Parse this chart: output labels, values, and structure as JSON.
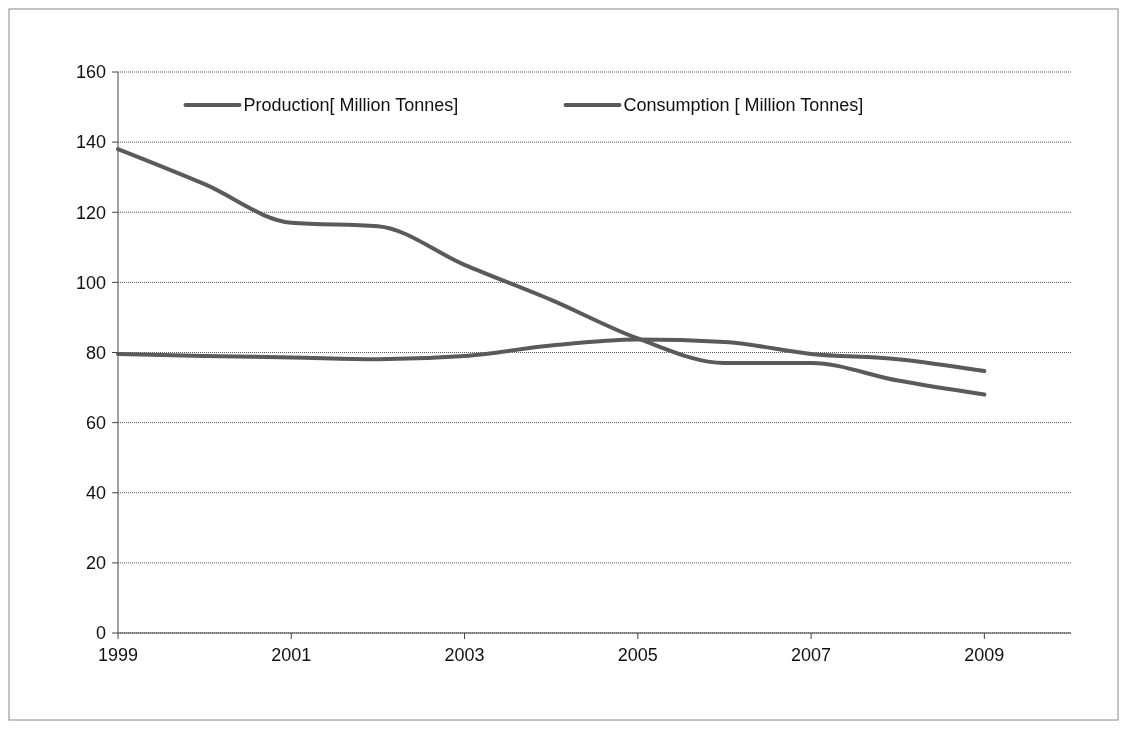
{
  "chart_data": {
    "type": "line",
    "x": [
      1999,
      2000,
      2001,
      2002,
      2003,
      2004,
      2005,
      2006,
      2007,
      2008,
      2009
    ],
    "series": [
      {
        "name": "Production[ Million Tonnes]",
        "color": "#5a5a5a",
        "values": [
          138,
          128,
          117,
          116,
          105,
          95,
          84,
          77,
          77,
          72,
          68
        ]
      },
      {
        "name": "Consumption [ Million Tonnes]",
        "color": "#5a5a5a",
        "values": [
          79.6,
          79,
          78.6,
          78.1,
          79,
          82,
          83.7,
          83,
          79.6,
          78.1,
          74.7
        ]
      }
    ],
    "xlim": [
      1999,
      2010
    ],
    "xticks": [
      1999,
      2001,
      2003,
      2005,
      2007,
      2009
    ],
    "ylim": [
      0,
      160
    ],
    "yticks": [
      0,
      20,
      40,
      60,
      80,
      100,
      120,
      140,
      160
    ],
    "grid": "y",
    "legend": "top",
    "marker": "none",
    "line_style": "solid"
  }
}
